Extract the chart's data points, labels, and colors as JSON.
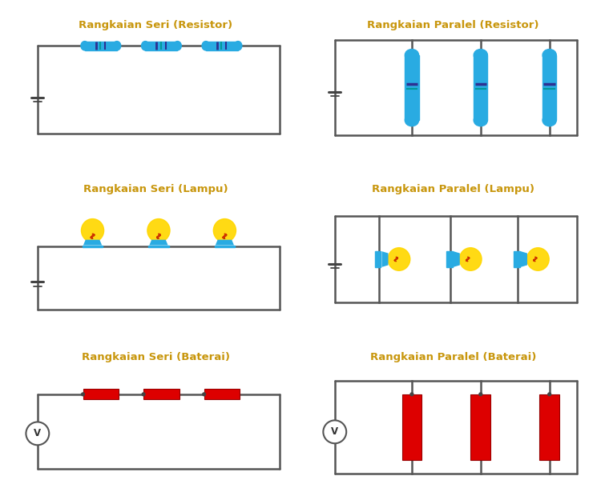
{
  "bg_color": "#ffffff",
  "title_color": "#c8960c",
  "title_fontsize": 9.5,
  "titles": [
    "Rangkaian Seri (Resistor)",
    "Rangkaian Paralel (Resistor)",
    "Rangkaian Seri (Lampu)",
    "Rangkaian Paralel (Lampu)",
    "Rangkaian Seri (Baterai)",
    "Rangkaian Paralel (Baterai)"
  ],
  "resistor_color": "#29ABE2",
  "resistor_stripe1": "#2E3192",
  "resistor_stripe2": "#009999",
  "battery_color": "#DD0000",
  "wire_color": "#555555",
  "lamp_base_color": "#29ABE2",
  "lamp_glow_color": "#FFD700",
  "lamp_filament_color": "#CC3300",
  "voltmeter_color": "#555555"
}
